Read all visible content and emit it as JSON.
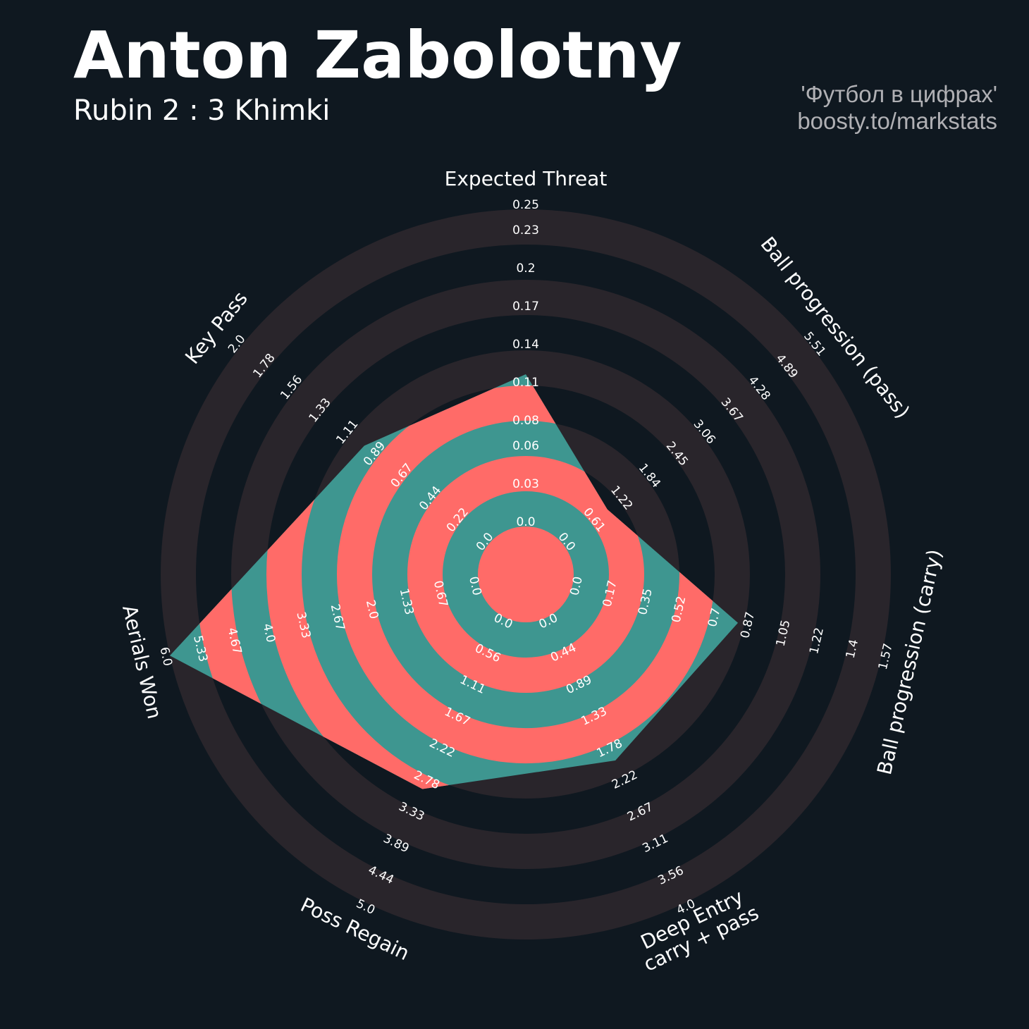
{
  "chart_data": {
    "type": "radar",
    "title": "Anton Zabolotny",
    "subtitle": "Rubin 2 : 3 Khimki",
    "credits": [
      "'Футбол в цифрах'",
      "boosty.to/markstats"
    ],
    "params": [
      [
        "Expected Threat"
      ],
      [
        "Ball progression (pass)"
      ],
      [
        "Ball progression (carry)"
      ],
      [
        "Deep Entry",
        "carry + pass"
      ],
      [
        "Poss Regain"
      ],
      [
        "Aerials Won"
      ],
      [
        "Key Pass"
      ]
    ],
    "axes": [
      {
        "lim": [
          0,
          0.25
        ],
        "ticks": [
          {
            "value": 0,
            "label": "0.0"
          },
          0.03,
          0.06,
          0.08,
          0.11,
          0.14,
          0.17,
          0.2,
          0.23,
          0.25
        ]
      },
      {
        "lim": [
          0,
          5.51
        ],
        "ticks": [
          {
            "value": 0,
            "label": "0.0"
          },
          0.61,
          1.22,
          1.84,
          2.45,
          3.06,
          3.67,
          4.28,
          4.89,
          5.51
        ]
      },
      {
        "lim": [
          0,
          1.57
        ],
        "ticks": [
          {
            "value": 0,
            "label": "0.0"
          },
          0.17,
          0.35,
          0.52,
          0.7,
          0.87,
          1.05,
          1.22,
          1.4,
          1.57
        ]
      },
      {
        "lim": [
          0,
          4
        ],
        "ticks": [
          {
            "value": 0,
            "label": "0.0"
          },
          0.44,
          0.89,
          1.33,
          1.78,
          2.22,
          2.67,
          3.11,
          3.56,
          {
            "value": 4,
            "label": "4.0"
          }
        ]
      },
      {
        "lim": [
          0,
          5
        ],
        "ticks": [
          {
            "value": 0,
            "label": "0.0"
          },
          0.56,
          1.11,
          1.67,
          2.22,
          2.78,
          3.33,
          3.89,
          4.44,
          {
            "value": 5,
            "label": "5.0"
          }
        ]
      },
      {
        "lim": [
          0,
          6
        ],
        "ticks": [
          {
            "value": 0,
            "label": "0.0"
          },
          0.67,
          1.33,
          {
            "value": 2,
            "label": "2.0"
          },
          2.67,
          3.33,
          {
            "value": 4,
            "label": "4.0"
          },
          4.67,
          5.33,
          {
            "value": 6,
            "label": "6.0"
          }
        ]
      },
      {
        "lim": [
          0,
          2
        ],
        "ticks": [
          {
            "value": 0,
            "label": "0.0"
          },
          0.22,
          0.44,
          0.67,
          0.89,
          1.11,
          1.33,
          1.56,
          1.78,
          {
            "value": 2,
            "label": "2.0"
          }
        ]
      }
    ],
    "series": [
      {
        "values": [
          0.12,
          0.98,
          0.84,
          2.0,
          3.0,
          6.0,
          1.0
        ],
        "color": "#3e9690",
        "ring_color": "#ff6b68"
      }
    ],
    "background_ring_color": "#29252b",
    "background_color": "#0f1820"
  }
}
